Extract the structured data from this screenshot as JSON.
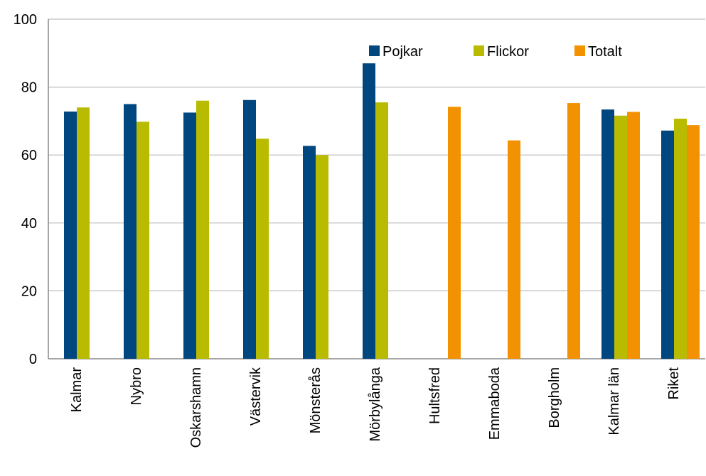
{
  "chart_data": {
    "type": "bar",
    "categories": [
      "Kalmar",
      "Nybro",
      "Oskarshamn",
      "Västervik",
      "Mönsterås",
      "Mörbylånga",
      "Hultsfred",
      "Emmaboda",
      "Borgholm",
      "Kalmar län",
      "Riket"
    ],
    "series": [
      {
        "name": "Pojkar",
        "color": "#00467F",
        "values": [
          72.8,
          75.0,
          72.5,
          76.2,
          62.7,
          87.0,
          null,
          null,
          null,
          73.4,
          67.2
        ]
      },
      {
        "name": "Flickor",
        "color": "#B9BB00",
        "values": [
          74.0,
          69.8,
          76.0,
          64.8,
          60.0,
          75.5,
          null,
          null,
          null,
          71.6,
          70.7
        ]
      },
      {
        "name": "Totalt",
        "color": "#F39200",
        "values": [
          null,
          null,
          null,
          null,
          null,
          null,
          74.2,
          64.3,
          75.3,
          72.7,
          68.8
        ]
      }
    ],
    "ylim": [
      0,
      100
    ],
    "yticks": [
      0,
      20,
      40,
      60,
      80,
      100
    ],
    "grid": true,
    "legend": "top-right",
    "title": "",
    "xlabel": "",
    "ylabel": ""
  }
}
